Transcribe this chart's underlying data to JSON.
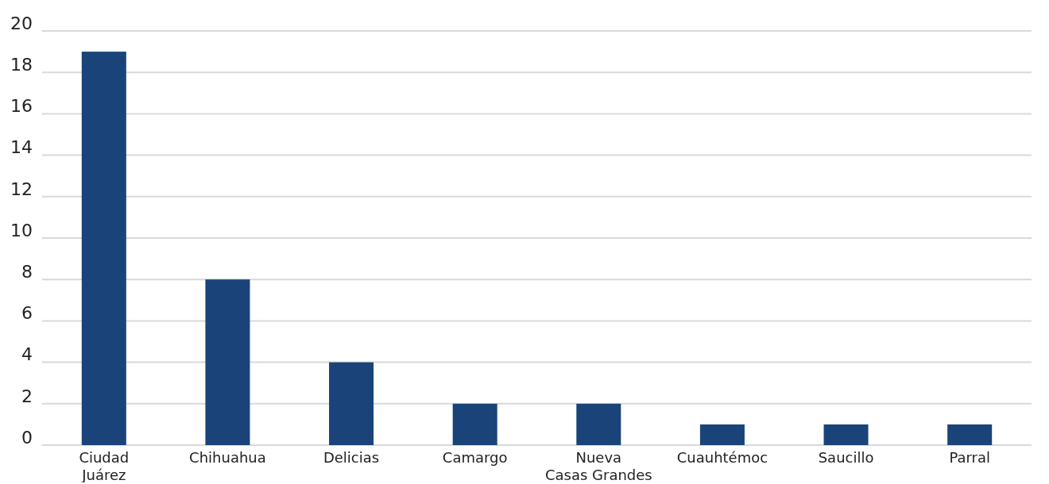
{
  "chart_data": {
    "type": "bar",
    "categories": [
      "Ciudad Juárez",
      "Chihuahua",
      "Delicias",
      "Camargo",
      "Nueva Casas Grandes",
      "Cuauhtémoc",
      "Saucillo",
      "Parral"
    ],
    "values": [
      19,
      8,
      4,
      2,
      2,
      1,
      1,
      1
    ],
    "color": "#1a4479",
    "ylim": [
      0,
      20
    ],
    "yticks": [
      0,
      2,
      4,
      6,
      8,
      10,
      12,
      14,
      16,
      18,
      20
    ],
    "grid": "y"
  }
}
